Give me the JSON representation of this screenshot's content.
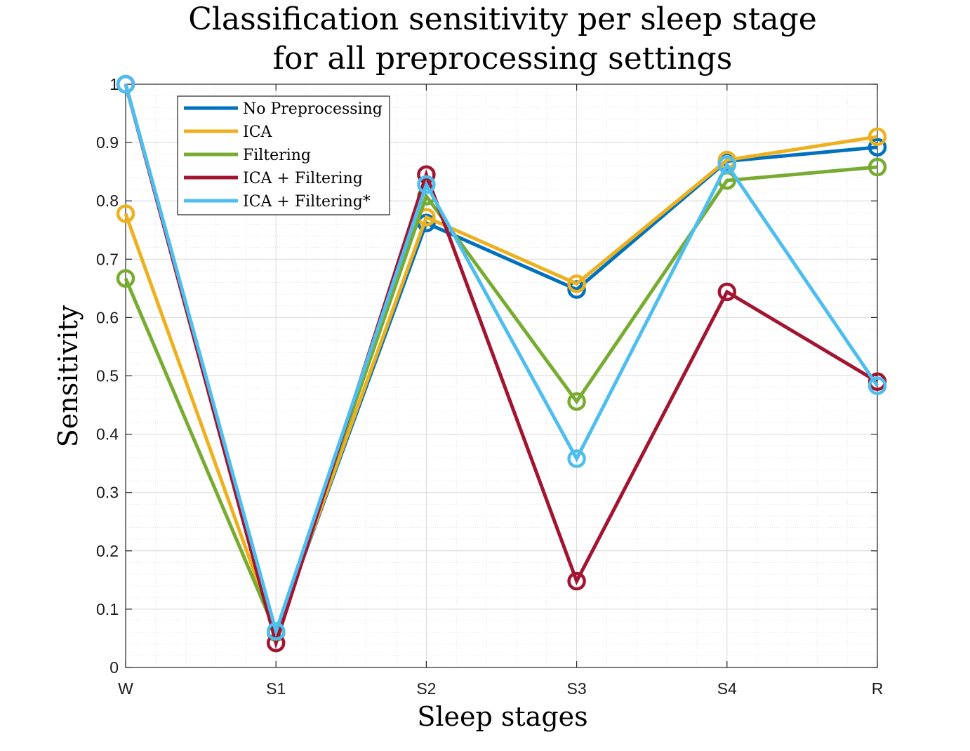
{
  "chart_data": {
    "type": "line",
    "title": [
      "Classification sensitivity per sleep stage",
      "for all preprocessing settings"
    ],
    "xlabel": "Sleep stages",
    "ylabel": "Sensitivity",
    "categories": [
      "W",
      "S1",
      "S2",
      "S3",
      "S4",
      "R"
    ],
    "ylim": [
      0,
      1
    ],
    "yticks": [
      "0",
      "0.1",
      "0.2",
      "0.3",
      "0.4",
      "0.5",
      "0.6",
      "0.7",
      "0.8",
      "0.9",
      "1"
    ],
    "grid": true,
    "legend_position": "top-left",
    "markers": "open-circle",
    "series": [
      {
        "name": "No Preprocessing",
        "color": "#0072BD",
        "values": [
          1.0,
          0.06,
          0.762,
          0.648,
          0.868,
          0.892
        ]
      },
      {
        "name": "ICA",
        "color": "#EDB120",
        "values": [
          0.778,
          0.06,
          0.772,
          0.658,
          0.87,
          0.91
        ]
      },
      {
        "name": "Filtering",
        "color": "#77AC30",
        "values": [
          0.667,
          0.06,
          0.808,
          0.456,
          0.835,
          0.858
        ]
      },
      {
        "name": "ICA + Filtering",
        "color": "#A2142F",
        "values": [
          1.0,
          0.042,
          0.845,
          0.148,
          0.644,
          0.49
        ]
      },
      {
        "name": "ICA + Filtering*",
        "color": "#4DBEEE",
        "values": [
          1.0,
          0.062,
          0.828,
          0.358,
          0.862,
          0.483
        ]
      }
    ]
  }
}
